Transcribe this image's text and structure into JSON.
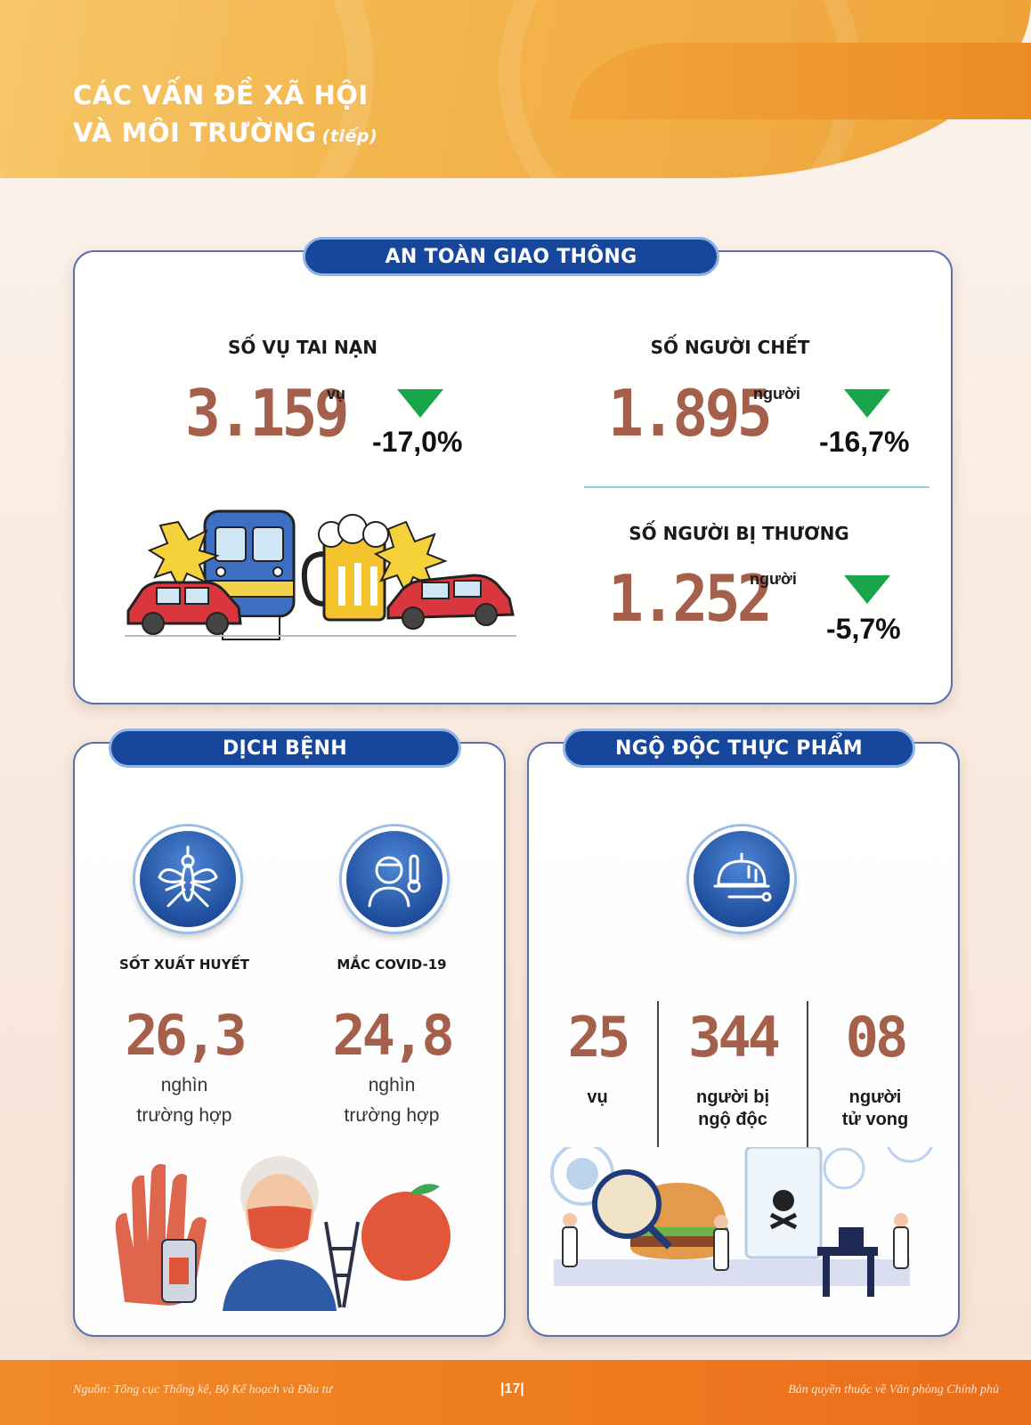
{
  "header": {
    "title_line1": "CÁC VẤN ĐỀ XÃ HỘI",
    "title_line2": "VÀ MÔI TRƯỜNG",
    "title_suffix": "(tiếp)"
  },
  "traffic": {
    "title": "AN TOÀN GIAO THÔNG",
    "accidents": {
      "label": "SỐ VỤ TAI NẠN",
      "value": "3.159",
      "unit": "vụ",
      "change": "-17,0%"
    },
    "deaths": {
      "label": "SỐ NGƯỜI CHẾT",
      "value": "1.895",
      "unit": "người",
      "change": "-16,7%"
    },
    "injured": {
      "label": "SỐ NGƯỜI BỊ THƯƠNG",
      "value": "1.252",
      "unit": "người",
      "change": "-5,7%"
    }
  },
  "disease": {
    "title": "DỊCH BỆNH",
    "dengue": {
      "label": "SỐT XUẤT HUYẾT",
      "value": "26,3",
      "unit_line1": "nghìn",
      "unit_line2": "trường hợp"
    },
    "covid": {
      "label": "MẮC COVID-19",
      "value": "24,8",
      "unit_line1": "nghìn",
      "unit_line2": "trường hợp"
    }
  },
  "food": {
    "title": "NGỘ ĐỘC THỰC PHẨM",
    "cases": {
      "value": "25",
      "unit_line1": "vụ"
    },
    "poisoned": {
      "value": "344",
      "unit_line1": "người bị",
      "unit_line2": "ngộ độc"
    },
    "dead": {
      "value": "08",
      "unit_line1": "người",
      "unit_line2": "tử vong"
    }
  },
  "footer": {
    "source": "Nguồn: Tổng cục Thống kê, Bộ Kế hoạch và Đầu tư",
    "page": "|17|",
    "copyright": "Bản quyền thuộc về Văn phòng Chính phủ"
  },
  "colors": {
    "accent_number": "#a4604a",
    "pill_blue": "#17479d",
    "down_arrow": "#19a64a",
    "header_orange": "#f3b54c"
  }
}
